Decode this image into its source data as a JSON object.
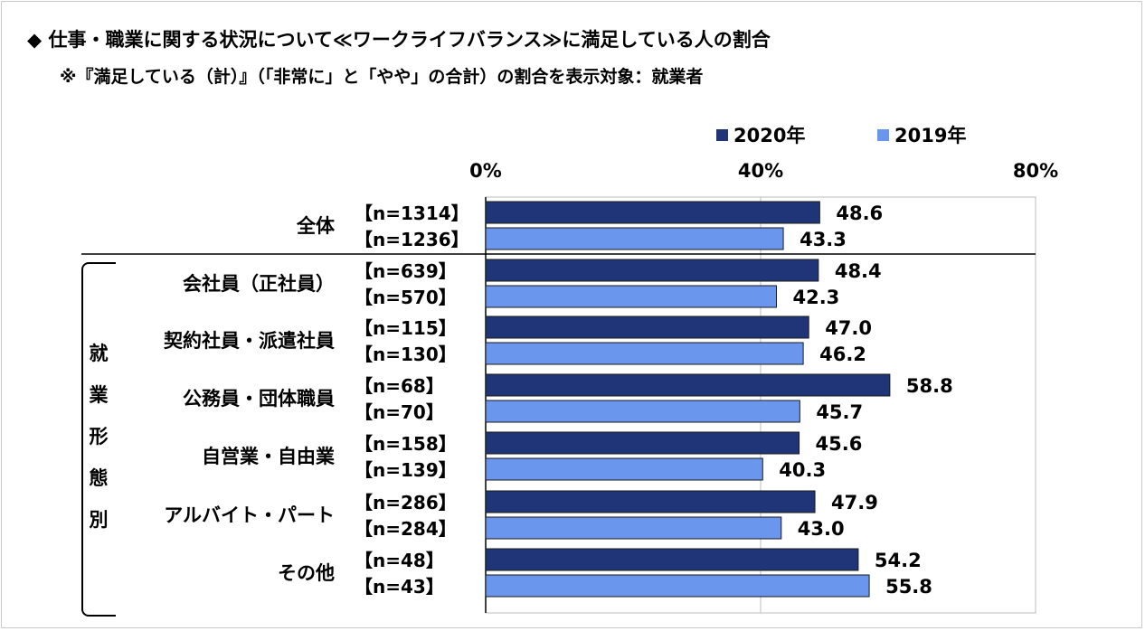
{
  "title": "◆ 仕事・職業に関する状況について≪ワークライフバランス≫に満足している人の割合",
  "subtitle": "※『満足している（計）』（「非常に」と「やや」の合計）の割合を表示対象：就業者",
  "group_label": [
    "就",
    "業",
    "形",
    "態",
    "別"
  ],
  "colors": {
    "series_2020": "#1f3577",
    "series_2019": "#6b96ee",
    "axis": "#000000",
    "grid": "#bdbdbd"
  },
  "chart_data": {
    "type": "bar",
    "orientation": "horizontal",
    "xlim": [
      0,
      80
    ],
    "ticks": [
      "0%",
      "40%",
      "80%"
    ],
    "tick_values": [
      0,
      40,
      80
    ],
    "legend": "top",
    "series": [
      {
        "name": "2020年",
        "color": "#1f3577"
      },
      {
        "name": "2019年",
        "color": "#6b96ee"
      }
    ],
    "categories": [
      {
        "label": "全体",
        "n": [
          "【n=1314】",
          "【n=1236】"
        ],
        "values": [
          48.6,
          43.3
        ]
      },
      {
        "label": "会社員（正社員）",
        "n": [
          "【n=639】",
          "【n=570】"
        ],
        "values": [
          48.4,
          42.3
        ]
      },
      {
        "label": "契約社員・派遣社員",
        "n": [
          "【n=115】",
          "【n=130】"
        ],
        "values": [
          47.0,
          46.2
        ]
      },
      {
        "label": "公務員・団体職員",
        "n": [
          "【n=68】",
          "【n=70】"
        ],
        "values": [
          58.8,
          45.7
        ]
      },
      {
        "label": "自営業・自由業",
        "n": [
          "【n=158】",
          "【n=139】"
        ],
        "values": [
          45.6,
          40.3
        ]
      },
      {
        "label": "アルバイト・パート",
        "n": [
          "【n=286】",
          "【n=284】"
        ],
        "values": [
          47.9,
          43.0
        ]
      },
      {
        "label": "その他",
        "n": [
          "【n=48】",
          "【n=43】"
        ],
        "values": [
          54.2,
          55.8
        ]
      }
    ],
    "value_labels": [
      [
        "48.6",
        "43.3"
      ],
      [
        "48.4",
        "42.3"
      ],
      [
        "47.0",
        "46.2"
      ],
      [
        "58.8",
        "45.7"
      ],
      [
        "45.6",
        "40.3"
      ],
      [
        "47.9",
        "43.0"
      ],
      [
        "54.2",
        "55.8"
      ]
    ]
  }
}
